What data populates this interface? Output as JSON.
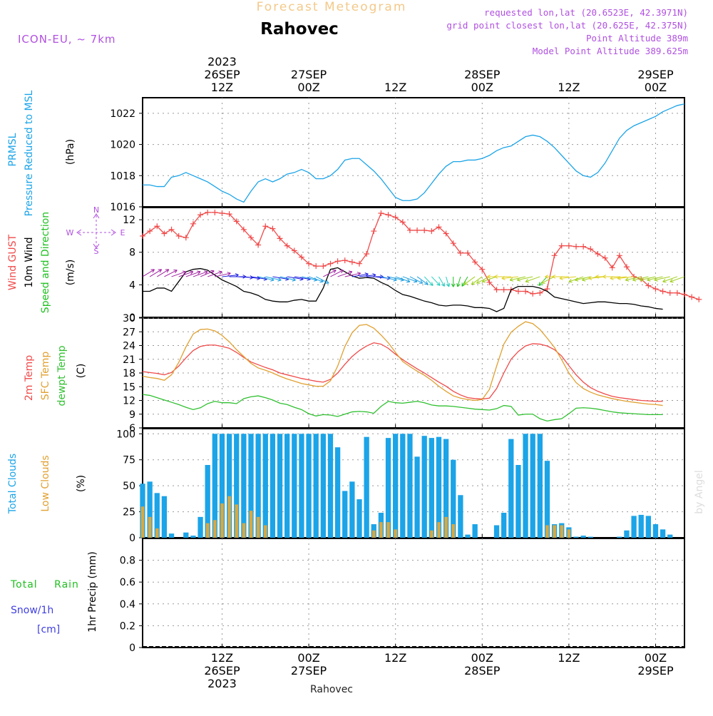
{
  "header": {
    "product_title": "Forecast Meteogram",
    "location": "Rahovec",
    "model": "ICON-EU, ~ 7km",
    "requested": "requested lon,lat (20.6523E, 42.3971N)",
    "grid_point": "grid point closest lon,lat (20.625E, 42.375N)",
    "point_altitude": "Point Altitude 389m",
    "model_altitude": "Model Point Altitude 389.625m",
    "watermark": "by Angel",
    "footer_location": "Rahovec"
  },
  "colors": {
    "prmsl": "#1ba4e8",
    "gust": "#f04a4a",
    "wind10m": "#000000",
    "dir": "#20c020",
    "t2m": "#f04a4a",
    "sfc": "#e0a030",
    "dewpt": "#30c030",
    "total_clouds": "#1ba4e8",
    "low_clouds": "#d9a840",
    "snow": "#4040e0",
    "compass": "#b050e0",
    "header_orange": "#f3c98a",
    "header_purple": "#b050e0"
  },
  "time_axis": {
    "start_hour": 0,
    "end_hour": 75,
    "labels": [
      {
        "hour": 11,
        "hour_label": "12Z",
        "date": "26SEP",
        "year": "2023"
      },
      {
        "hour": 23,
        "hour_label": "00Z",
        "date": "27SEP",
        "year": ""
      },
      {
        "hour": 35,
        "hour_label": "12Z",
        "date": "",
        "year": ""
      },
      {
        "hour": 47,
        "hour_label": "00Z",
        "date": "28SEP",
        "year": ""
      },
      {
        "hour": 59,
        "hour_label": "12Z",
        "date": "",
        "year": ""
      },
      {
        "hour": 71,
        "hour_label": "00Z",
        "date": "29SEP",
        "year": ""
      }
    ]
  },
  "chart_data": [
    {
      "type": "line",
      "panel": "pressure",
      "ylabel": [
        "PRMSL",
        "Pressure Reduced to MSL"
      ],
      "unit": "(hPa)",
      "ylim": [
        1016,
        1023
      ],
      "yticks": [
        1016,
        1018,
        1020,
        1022
      ],
      "series": [
        {
          "name": "PRMSL",
          "values": [
            1017.4,
            1017.4,
            1017.3,
            1017.3,
            1017.9,
            1018.0,
            1018.2,
            1018.0,
            1017.8,
            1017.6,
            1017.3,
            1017.0,
            1016.8,
            1016.5,
            1016.3,
            1017.0,
            1017.6,
            1017.8,
            1017.6,
            1017.8,
            1018.1,
            1018.2,
            1018.4,
            1018.2,
            1017.8,
            1017.8,
            1018.0,
            1018.4,
            1019.0,
            1019.1,
            1019.1,
            1018.7,
            1018.3,
            1017.8,
            1017.2,
            1016.6,
            1016.4,
            1016.4,
            1016.5,
            1016.9,
            1017.5,
            1018.1,
            1018.6,
            1018.9,
            1018.9,
            1019.0,
            1019.0,
            1019.1,
            1019.3,
            1019.6,
            1019.8,
            1019.9,
            1020.2,
            1020.5,
            1020.6,
            1020.5,
            1020.2,
            1019.8,
            1019.3,
            1018.8,
            1018.3,
            1018.0,
            1017.9,
            1018.2,
            1018.8,
            1019.6,
            1020.4,
            1020.9,
            1021.2,
            1021.4,
            1021.6,
            1021.8,
            1022.1,
            1022.3,
            1022.5,
            1022.6
          ]
        }
      ]
    },
    {
      "type": "line",
      "panel": "wind",
      "ylabel": [
        "Wind GUST",
        "10m Wind",
        "Speed and Direction"
      ],
      "unit": "(m/s)",
      "ylim": [
        0,
        13.5
      ],
      "yticks": [
        0,
        4,
        8,
        12
      ],
      "compass": {
        "north": "N",
        "south": "S",
        "east": "E",
        "west": "W"
      },
      "series": [
        {
          "name": "Wind GUST",
          "values": [
            10.0,
            10.6,
            11.2,
            10.3,
            10.8,
            10.0,
            9.8,
            11.5,
            12.6,
            12.9,
            12.9,
            12.8,
            12.7,
            11.8,
            10.8,
            9.8,
            8.9,
            11.2,
            10.9,
            9.7,
            8.8,
            8.2,
            7.4,
            6.6,
            6.3,
            6.3,
            6.6,
            6.9,
            7.0,
            6.8,
            6.6,
            7.8,
            10.6,
            12.8,
            12.6,
            12.3,
            11.7,
            10.7,
            10.7,
            10.7,
            10.6,
            11.1,
            10.3,
            9.1,
            7.9,
            7.9,
            6.8,
            5.9,
            4.3,
            3.4,
            3.4,
            3.4,
            3.2,
            3.2,
            2.9,
            3.0,
            3.5,
            7.6,
            8.8,
            8.8,
            8.7,
            8.7,
            8.4,
            7.8,
            7.3,
            6.1,
            7.6,
            6.2,
            5.0,
            4.7,
            3.9,
            3.5,
            3.2,
            3.0,
            3.0,
            2.8,
            2.5,
            2.2
          ]
        },
        {
          "name": "10m Wind",
          "values": [
            3.2,
            3.2,
            3.6,
            3.6,
            3.2,
            4.4,
            5.6,
            5.9,
            6.0,
            5.8,
            5.2,
            4.6,
            4.2,
            3.8,
            3.2,
            3.0,
            2.7,
            2.2,
            2.0,
            1.9,
            1.9,
            2.1,
            2.2,
            2.0,
            2.0,
            3.6,
            5.9,
            6.1,
            5.6,
            5.1,
            4.8,
            4.9,
            4.8,
            4.3,
            3.9,
            3.3,
            2.8,
            2.6,
            2.3,
            2.0,
            1.8,
            1.5,
            1.4,
            1.5,
            1.5,
            1.4,
            1.2,
            1.2,
            1.1,
            0.7,
            1.1,
            3.4,
            3.8,
            3.8,
            3.8,
            3.6,
            3.2,
            2.5,
            2.3,
            2.1,
            1.9,
            1.7,
            1.8,
            1.9,
            1.9,
            1.8,
            1.7,
            1.7,
            1.6,
            1.4,
            1.3,
            1.1,
            1.0
          ]
        }
      ],
      "directions_deg": [
        225,
        225,
        225,
        230,
        240,
        240,
        240,
        240,
        235,
        240,
        250,
        260,
        270,
        275,
        280,
        285,
        290,
        290,
        285,
        290,
        285,
        285,
        290,
        300,
        310,
        230,
        230,
        240,
        250,
        255,
        260,
        270,
        280,
        290,
        290,
        300,
        300,
        310,
        320,
        330,
        330,
        340,
        350,
        0,
        10,
        20,
        40,
        40,
        50,
        60,
        90,
        90,
        80,
        70,
        70,
        60,
        30,
        50,
        90,
        90,
        80,
        60,
        70,
        70,
        80,
        90,
        90,
        80,
        80,
        70,
        70,
        70,
        70,
        70,
        60,
        60
      ]
    },
    {
      "type": "line",
      "panel": "temperature",
      "ylabel": [
        "2m Temp",
        "SFC Temp",
        "dewpt Temp"
      ],
      "unit": "(C)",
      "ylim": [
        6,
        30
      ],
      "yticks": [
        6,
        9,
        12,
        15,
        18,
        21,
        24,
        27,
        30
      ],
      "series": [
        {
          "name": "2m Temp",
          "values": [
            18.3,
            18.1,
            17.9,
            17.6,
            18.1,
            19.5,
            21.3,
            22.9,
            23.8,
            24.1,
            24.1,
            23.8,
            23.4,
            22.5,
            21.4,
            20.4,
            19.8,
            19.2,
            18.7,
            18.0,
            17.6,
            17.2,
            16.8,
            16.5,
            16.2,
            16.0,
            16.6,
            18.0,
            19.9,
            21.6,
            22.9,
            23.9,
            24.6,
            24.3,
            23.4,
            22.1,
            20.9,
            19.9,
            18.9,
            18.0,
            17.0,
            16.0,
            15.1,
            14.0,
            13.2,
            12.6,
            12.4,
            12.3,
            12.5,
            14.6,
            18.0,
            21.0,
            22.7,
            23.9,
            24.4,
            24.3,
            23.9,
            23.1,
            21.7,
            19.6,
            17.6,
            16.0,
            14.8,
            14.0,
            13.4,
            12.9,
            12.6,
            12.4,
            12.2,
            12.0,
            11.9,
            11.8,
            11.8
          ]
        },
        {
          "name": "SFC Temp",
          "values": [
            17.3,
            17.0,
            16.8,
            16.4,
            17.6,
            20.3,
            23.7,
            26.5,
            27.5,
            27.6,
            27.2,
            26.2,
            24.8,
            23.1,
            21.6,
            20.1,
            19.1,
            18.6,
            18.0,
            17.3,
            16.7,
            16.2,
            15.7,
            15.4,
            15.1,
            15.1,
            16.3,
            19.5,
            23.8,
            26.8,
            28.4,
            28.6,
            27.8,
            26.3,
            24.6,
            22.5,
            20.5,
            19.4,
            18.4,
            17.5,
            16.4,
            15.1,
            14.0,
            13.0,
            12.5,
            12.2,
            12.0,
            12.2,
            14.4,
            19.5,
            24.3,
            26.9,
            28.2,
            29.2,
            28.8,
            27.5,
            25.6,
            23.6,
            20.9,
            18.0,
            15.9,
            14.6,
            13.8,
            13.2,
            12.8,
            12.4,
            12.1,
            11.8,
            11.6,
            11.4,
            11.2,
            11.1,
            10.9
          ]
        },
        {
          "name": "dewpt Temp",
          "values": [
            13.3,
            13.1,
            12.6,
            12.1,
            11.6,
            11.1,
            10.5,
            10.0,
            10.4,
            11.3,
            11.8,
            11.5,
            11.5,
            11.3,
            12.4,
            12.8,
            13.0,
            12.6,
            12.1,
            11.4,
            11.1,
            10.5,
            10.0,
            9.1,
            8.6,
            8.9,
            8.8,
            8.5,
            9.0,
            9.5,
            9.6,
            9.5,
            9.2,
            10.7,
            11.8,
            11.5,
            11.4,
            11.6,
            11.8,
            11.5,
            11.0,
            10.8,
            10.8,
            10.7,
            10.5,
            10.3,
            10.1,
            10.0,
            9.9,
            10.2,
            10.9,
            10.7,
            8.8,
            9.0,
            9.0,
            8.0,
            7.5,
            7.8,
            8.0,
            9.1,
            10.3,
            10.4,
            10.3,
            10.1,
            9.8,
            9.5,
            9.3,
            9.2,
            9.1,
            9.0,
            8.9,
            8.9,
            8.9
          ]
        }
      ]
    },
    {
      "type": "bar",
      "panel": "clouds",
      "ylabel": [
        "Total Clouds",
        "Low Clouds"
      ],
      "unit": "(%)",
      "ylim": [
        0,
        105
      ],
      "yticks": [
        0,
        25,
        50,
        75,
        100
      ],
      "series": [
        {
          "name": "Total Clouds",
          "values": [
            52,
            54,
            43,
            40,
            4,
            0,
            5,
            2,
            20,
            70,
            100,
            100,
            100,
            100,
            100,
            100,
            100,
            100,
            100,
            100,
            100,
            100,
            100,
            100,
            100,
            100,
            100,
            87,
            45,
            54,
            37,
            97,
            13,
            24,
            96,
            100,
            100,
            100,
            78,
            98,
            96,
            97,
            95,
            75,
            41,
            3,
            13,
            0,
            0,
            12,
            24,
            95,
            70,
            100,
            100,
            100,
            74,
            13,
            14,
            10,
            1,
            2,
            1,
            0,
            0,
            0,
            1,
            7,
            21,
            22,
            21,
            13,
            8,
            3
          ]
        },
        {
          "name": "Low Clouds",
          "values": [
            30,
            20,
            9,
            0,
            0,
            0,
            0,
            0,
            0,
            14,
            17,
            33,
            40,
            32,
            14,
            26,
            20,
            12,
            0,
            0,
            0,
            0,
            0,
            0,
            0,
            0,
            0,
            0,
            0,
            0,
            0,
            0,
            7,
            15,
            15,
            8,
            0,
            0,
            0,
            0,
            7,
            15,
            20,
            13,
            0,
            0,
            0,
            0,
            0,
            0,
            0,
            0,
            0,
            0,
            0,
            0,
            12,
            12,
            12,
            8,
            0,
            0,
            0,
            0,
            0,
            0,
            0,
            0,
            0,
            0,
            0,
            0,
            0,
            0
          ]
        }
      ]
    },
    {
      "type": "bar",
      "panel": "precip",
      "ylabel": [
        "Total Rain",
        "Snow/1h",
        "[cm]"
      ],
      "unit": "1hr Precip (mm)",
      "ylim": [
        0,
        1.0
      ],
      "yticks": [
        0,
        0.2,
        0.4,
        0.6,
        0.8
      ],
      "series": [
        {
          "name": "Total Rain",
          "values": []
        },
        {
          "name": "Snow/1h",
          "values": []
        }
      ]
    }
  ]
}
